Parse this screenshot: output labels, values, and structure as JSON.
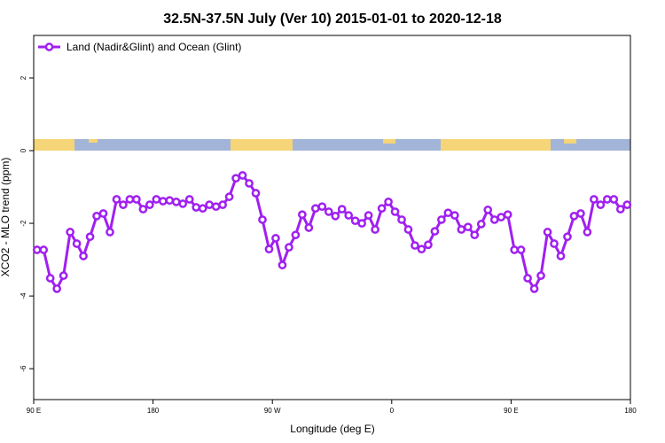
{
  "chart_data": {
    "type": "line",
    "title": "32.5N-37.5N July (Ver 10)   2015-01-01 to 2020-12-18",
    "x_label": "Longitude (deg E)",
    "y_label": "XCO2 - MLO trend (ppm)",
    "xlim": [
      90,
      540
    ],
    "xticks": [
      {
        "value": 90,
        "label": "90 E"
      },
      {
        "value": 180,
        "label": "180"
      },
      {
        "value": 270,
        "label": "90 W"
      },
      {
        "value": 360,
        "label": "0"
      },
      {
        "value": 450,
        "label": "90 E"
      },
      {
        "value": 540,
        "label": "180"
      }
    ],
    "ylim": [
      -6.85,
      3.17
    ],
    "yticks": [
      2,
      0,
      -2,
      -4,
      -6
    ],
    "grid": false,
    "legend": "top-left",
    "x": [
      92.5,
      97.5,
      102.5,
      107.5,
      112.5,
      117.5,
      122.5,
      127.5,
      132.5,
      137.5,
      142.5,
      147.5,
      152.5,
      157.5,
      162.5,
      167.5,
      172.5,
      177.5,
      182.5,
      187.5,
      192.5,
      197.5,
      202.5,
      207.5,
      212.5,
      217.5,
      222.5,
      227.5,
      232.5,
      237.5,
      242.5,
      247.5,
      252.5,
      257.5,
      262.5,
      267.5,
      272.5,
      277.5,
      282.5,
      287.5,
      292.5,
      297.5,
      302.5,
      307.5,
      312.5,
      317.5,
      322.5,
      327.5,
      332.5,
      337.5,
      342.5,
      347.5,
      352.5,
      357.5,
      362.5,
      367.5,
      372.5,
      377.5,
      382.5,
      387.5,
      392.5,
      397.5,
      402.5,
      407.5,
      412.5,
      417.5,
      422.5,
      427.5,
      432.5,
      437.5,
      442.5,
      447.5,
      452.5,
      457.5,
      462.5,
      467.5,
      472.5,
      477.5,
      482.5,
      487.5,
      492.5,
      497.5,
      502.5,
      507.5,
      512.5,
      517.5,
      522.5,
      527.5,
      532.5,
      537.5
    ],
    "series": [
      {
        "name": "Land (Nadir&Glint) and Ocean (Glint)",
        "color": "#a020f0",
        "values": [
          -2.73,
          -2.73,
          -3.51,
          -3.8,
          -3.44,
          -2.24,
          -2.56,
          -2.9,
          -2.37,
          -1.8,
          -1.73,
          -2.24,
          -1.34,
          -1.49,
          -1.34,
          -1.34,
          -1.61,
          -1.49,
          -1.34,
          -1.39,
          -1.37,
          -1.41,
          -1.46,
          -1.34,
          -1.56,
          -1.59,
          -1.49,
          -1.54,
          -1.49,
          -1.27,
          -0.76,
          -0.68,
          -0.9,
          -1.17,
          -1.9,
          -2.71,
          -2.41,
          -3.15,
          -2.66,
          -2.32,
          -1.76,
          -2.12,
          -1.59,
          -1.54,
          -1.68,
          -1.8,
          -1.61,
          -1.78,
          -1.93,
          -2.0,
          -1.78,
          -2.17,
          -1.59,
          -1.41,
          -1.68,
          -1.9,
          -2.17,
          -2.61,
          -2.71,
          -2.59,
          -2.22,
          -1.9,
          -1.71,
          -1.78,
          -2.17,
          -2.1,
          -2.32,
          -2.02,
          -1.63,
          -1.9,
          -1.83,
          -1.76,
          -2.73,
          -2.73,
          -3.51,
          -3.8,
          -3.44,
          -2.24,
          -2.56,
          -2.9,
          -2.37,
          -1.8,
          -1.73,
          -2.24,
          -1.34,
          -1.49,
          -1.34,
          -1.34,
          -1.61,
          -1.49
        ]
      }
    ]
  }
}
